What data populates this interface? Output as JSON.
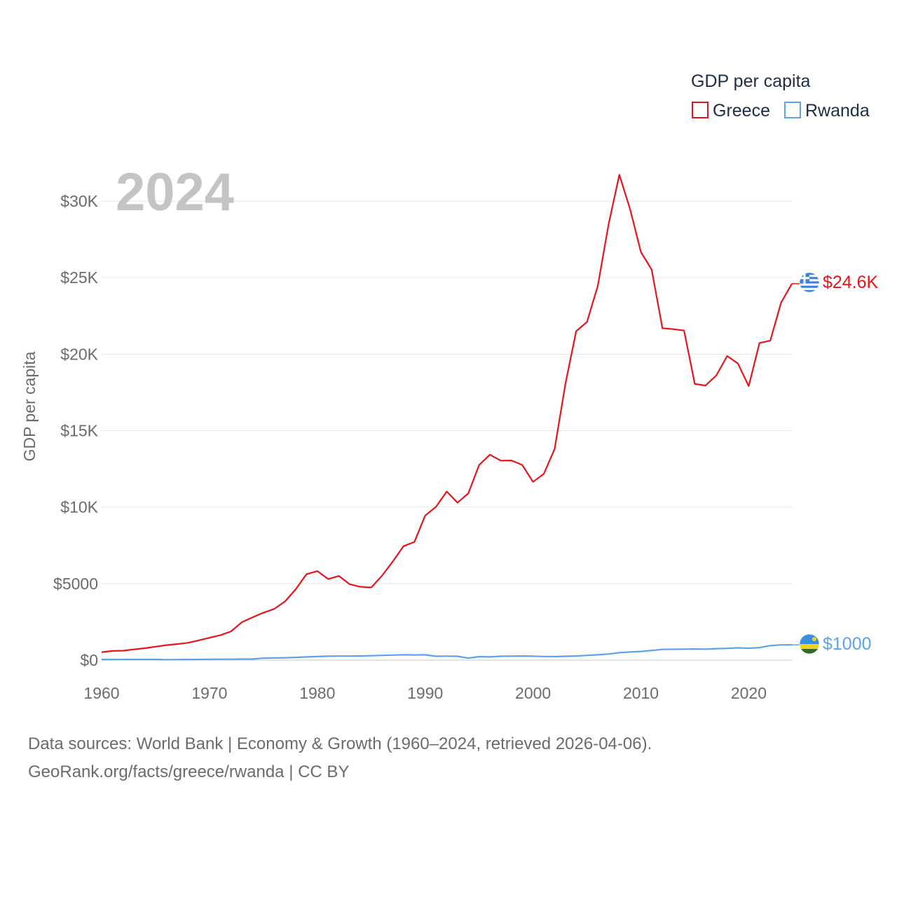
{
  "chart_data": {
    "type": "line",
    "year_label": "2024",
    "ylabel": "GDP per capita",
    "legend_title": "GDP per capita",
    "legend_placement": "top-right",
    "xlim": [
      1960,
      2024
    ],
    "ylim": [
      0,
      33000
    ],
    "x_ticks": [
      1960,
      1970,
      1980,
      1990,
      2000,
      2010,
      2020
    ],
    "x_tick_labels": [
      "1960",
      "1970",
      "1980",
      "1990",
      "2000",
      "2010",
      "2020"
    ],
    "y_ticks": [
      0,
      5000,
      10000,
      15000,
      20000,
      25000,
      30000
    ],
    "y_tick_labels": [
      "$0",
      "$5000",
      "$10K",
      "$15K",
      "$20K",
      "$25K",
      "$30K"
    ],
    "grid": true,
    "series": [
      {
        "name": "Greece",
        "color": "#e8141b",
        "end_label": "$24.6K",
        "flag_icon": "greece-flag-icon",
        "x": [
          1960,
          1961,
          1962,
          1963,
          1964,
          1965,
          1966,
          1967,
          1968,
          1969,
          1970,
          1971,
          1972,
          1973,
          1974,
          1975,
          1976,
          1977,
          1978,
          1979,
          1980,
          1981,
          1982,
          1983,
          1984,
          1985,
          1986,
          1987,
          1988,
          1989,
          1990,
          1991,
          1992,
          1993,
          1994,
          1995,
          1996,
          1997,
          1998,
          1999,
          2000,
          2001,
          2002,
          2003,
          2004,
          2005,
          2006,
          2007,
          2008,
          2009,
          2010,
          2011,
          2012,
          2013,
          2014,
          2015,
          2016,
          2017,
          2018,
          2019,
          2020,
          2021,
          2022,
          2023,
          2024
        ],
        "values": [
          520,
          600,
          620,
          700,
          780,
          880,
          980,
          1050,
          1130,
          1290,
          1460,
          1630,
          1880,
          2480,
          2800,
          3100,
          3350,
          3830,
          4630,
          5620,
          5820,
          5300,
          5500,
          4960,
          4790,
          4750,
          5520,
          6450,
          7450,
          7720,
          9450,
          10020,
          11020,
          10290,
          10900,
          12750,
          13430,
          13040,
          13050,
          12760,
          11650,
          12170,
          13800,
          18050,
          21500,
          22100,
          24450,
          28480,
          31720,
          29480,
          26680,
          25520,
          21690,
          21630,
          21540,
          18050,
          17950,
          18620,
          19880,
          19390,
          17910,
          20730,
          20880,
          23370,
          24600
        ]
      },
      {
        "name": "Rwanda",
        "color": "#5ba4e8",
        "end_label": "$1000",
        "flag_icon": "rwanda-flag-icon",
        "x": [
          1960,
          1961,
          1962,
          1963,
          1964,
          1965,
          1966,
          1967,
          1968,
          1969,
          1970,
          1971,
          1972,
          1973,
          1974,
          1975,
          1976,
          1977,
          1978,
          1979,
          1980,
          1981,
          1982,
          1983,
          1984,
          1985,
          1986,
          1987,
          1988,
          1989,
          1990,
          1991,
          1992,
          1993,
          1994,
          1995,
          1996,
          1997,
          1998,
          1999,
          2000,
          2001,
          2002,
          2003,
          2004,
          2005,
          2006,
          2007,
          2008,
          2009,
          2010,
          2011,
          2012,
          2013,
          2014,
          2015,
          2016,
          2017,
          2018,
          2019,
          2020,
          2021,
          2022,
          2023,
          2024
        ],
        "values": [
          40,
          42,
          44,
          45,
          46,
          48,
          30,
          38,
          42,
          48,
          55,
          58,
          60,
          68,
          75,
          130,
          140,
          155,
          180,
          210,
          235,
          255,
          265,
          265,
          270,
          290,
          310,
          330,
          350,
          340,
          350,
          250,
          260,
          250,
          130,
          230,
          210,
          250,
          260,
          270,
          255,
          240,
          230,
          250,
          270,
          310,
          350,
          400,
          490,
          530,
          570,
          630,
          700,
          710,
          720,
          730,
          720,
          750,
          770,
          800,
          780,
          820,
          950,
          1000,
          1000
        ]
      }
    ]
  },
  "footer": {
    "line1": "Data sources: World Bank | Economy & Growth (1960–2024, retrieved 2026-04-06).",
    "line2": "GeoRank.org/facts/greece/rwanda | CC BY"
  }
}
